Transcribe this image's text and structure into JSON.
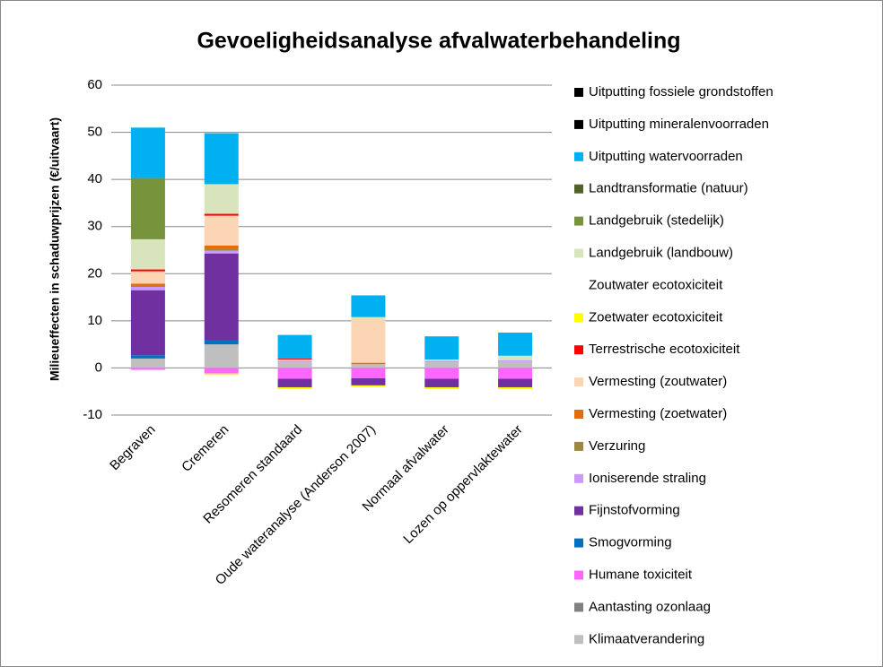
{
  "chart_data": {
    "type": "bar",
    "stacked": true,
    "title": "Gevoeligheidsanalyse  afvalwaterbehandeling",
    "y_label": "Milieueffecten in schaduwprijzen  (€/uitvaart)",
    "categories": [
      "Begraven",
      "Cremeren",
      "Resomeren standaard",
      "Oude wateranalyse (Anderson 2007)",
      "Normaal afvalwater",
      "Lozen op oppervlaktewater"
    ],
    "ylim": [
      -10,
      60
    ],
    "yticks": [
      -10,
      0,
      10,
      20,
      30,
      40,
      50,
      60
    ],
    "grid": true,
    "legend": "right",
    "series": [
      {
        "name": "Klimaatverandering",
        "color": "#bfbfbf",
        "values": [
          2,
          5,
          1.2,
          0.8,
          1.2,
          1.3
        ]
      },
      {
        "name": "Aantasting ozonlaag",
        "color": "#808080",
        "values": [
          0,
          0,
          0,
          0,
          0,
          0
        ]
      },
      {
        "name": "Humane toxiciteit",
        "color": "#ff66ff",
        "values": [
          -0.4,
          -1.2,
          -2.3,
          -2.2,
          -2.3,
          -2.3
        ]
      },
      {
        "name": "Smogvorming",
        "color": "#0070c0",
        "values": [
          0.7,
          0.8,
          0,
          0,
          0,
          0
        ]
      },
      {
        "name": "Fijnstofvorming",
        "color": "#7030a0",
        "values": [
          13.8,
          18.5,
          -1.8,
          -1.5,
          -1.8,
          -1.8
        ]
      },
      {
        "name": "Ioniserende straling",
        "color": "#cc99ff",
        "values": [
          0.7,
          0.6,
          0.3,
          0,
          0.3,
          0.3
        ]
      },
      {
        "name": "Verzuring",
        "color": "#9c8a3c",
        "values": [
          0.2,
          0.3,
          0,
          0,
          0,
          0
        ]
      },
      {
        "name": "Vermesting (zoetwater)",
        "color": "#e46c0a",
        "values": [
          0.5,
          0.8,
          0,
          0.3,
          0,
          0
        ]
      },
      {
        "name": "Vermesting (zoutwater)",
        "color": "#fcd5b4",
        "values": [
          2.6,
          6.3,
          0.3,
          9.4,
          0,
          0
        ]
      },
      {
        "name": "Terrestrische ecotoxiciteit",
        "color": "#ff0000",
        "values": [
          0.4,
          0.4,
          0.2,
          0,
          0,
          0
        ]
      },
      {
        "name": "Zoetwater ecotoxiciteit",
        "color": "#ffff00",
        "values": [
          0,
          -0.3,
          -0.4,
          -0.3,
          -0.4,
          -0.4
        ]
      },
      {
        "name": "Zoutwater ecotoxiciteit",
        "color": "#ffffff",
        "values": [
          0,
          0,
          0,
          0,
          0,
          0
        ]
      },
      {
        "name": "Landgebruik (landbouw)",
        "color": "#d8e4bc",
        "values": [
          6.4,
          6.3,
          0,
          0.3,
          0.3,
          1
        ]
      },
      {
        "name": "Landgebruik (stedelijk)",
        "color": "#77933c",
        "values": [
          13,
          0,
          0,
          0,
          0,
          0
        ]
      },
      {
        "name": "Landtransformatie (natuur)",
        "color": "#4f6228",
        "values": [
          0,
          0,
          0,
          0,
          0,
          0
        ]
      },
      {
        "name": "Uitputting watervoorraden",
        "color": "#00b0f0",
        "values": [
          10.7,
          10.8,
          5,
          4.6,
          4.9,
          4.9
        ]
      },
      {
        "name": "Uitputting mineralenvoorraden",
        "color": "#000000",
        "values": [
          0,
          0,
          0,
          0,
          0,
          0
        ]
      },
      {
        "name": "Uitputting fossiele grondstoffen",
        "color": "#000000",
        "values": [
          0,
          0,
          0,
          0,
          0,
          0
        ]
      }
    ]
  }
}
